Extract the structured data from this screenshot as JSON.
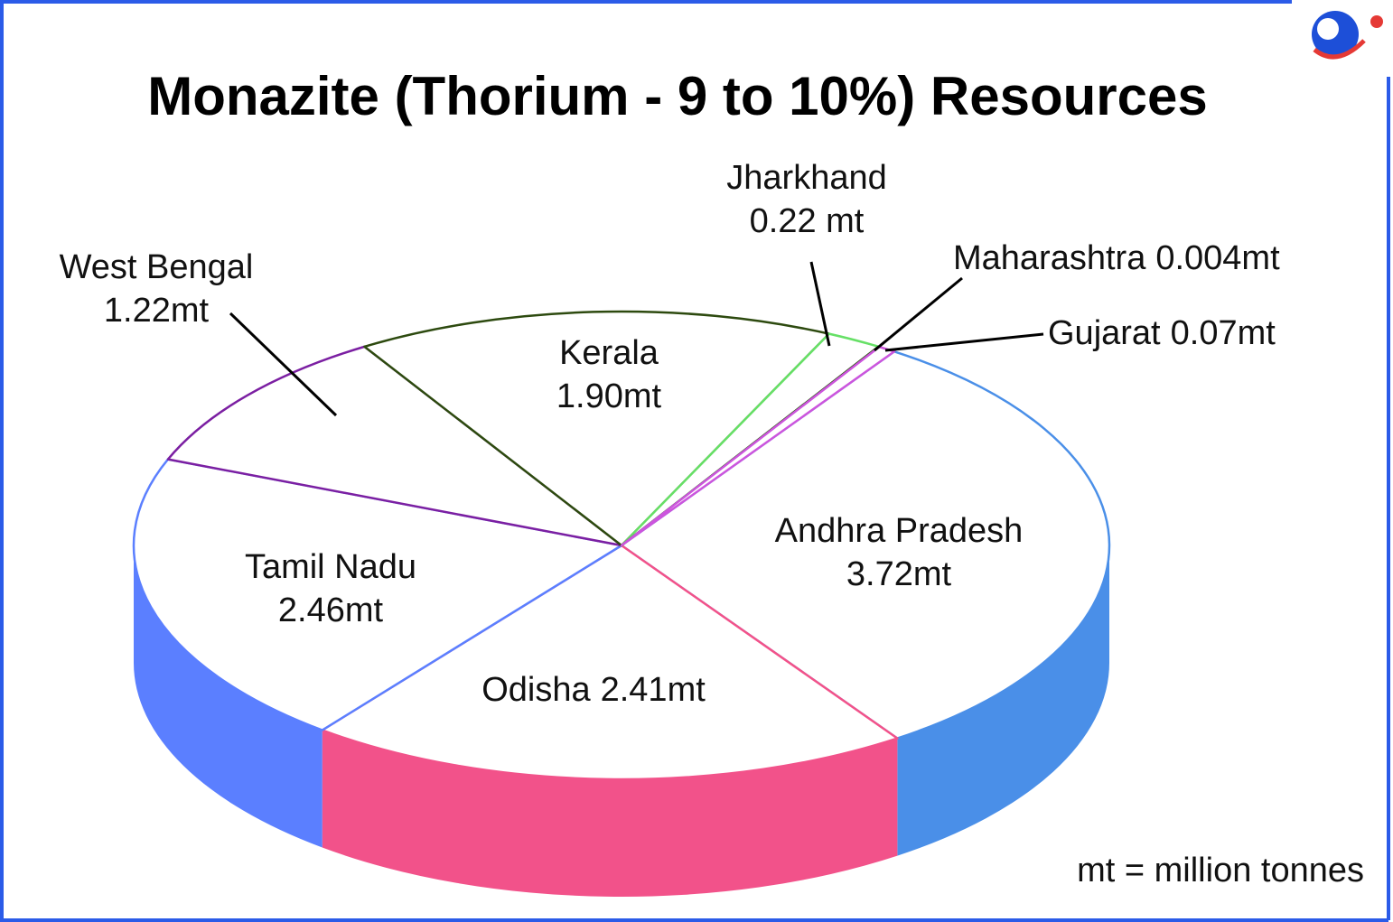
{
  "chart_data": {
    "type": "pie3d",
    "title": "Monazite (Thorium - 9 to 10%) Resources",
    "categories": [
      "Andhra Pradesh",
      "Odisha",
      "Tamil Nadu",
      "West Bengal",
      "Kerala",
      "Jharkhand",
      "Maharashtra",
      "Gujarat"
    ],
    "values": [
      3.72,
      2.41,
      2.46,
      1.22,
      1.9,
      0.22,
      0.004,
      0.07
    ],
    "value_labels": [
      "3.72mt",
      "2.41mt",
      "2.46mt",
      "1.22mt",
      "1.90mt",
      "0.22 mt",
      "0.004mt",
      "0.07mt"
    ],
    "colors": [
      "#4a8fe8",
      "#f2528a",
      "#5b7fff",
      "#7b1fa2",
      "#2d4a0f",
      "#66e066",
      "#2d4a0f",
      "#cc55dd"
    ],
    "note": "mt = million tonnes"
  }
}
